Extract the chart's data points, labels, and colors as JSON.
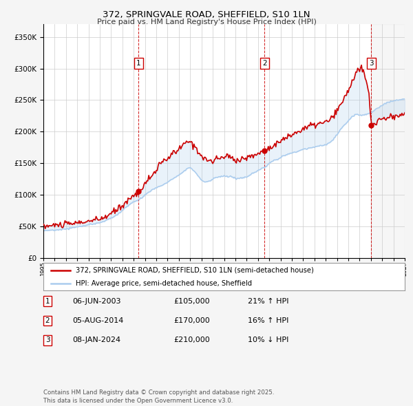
{
  "title": "372, SPRINGVALE ROAD, SHEFFIELD, S10 1LN",
  "subtitle": "Price paid vs. HM Land Registry's House Price Index (HPI)",
  "xlim": [
    1995.0,
    2027.0
  ],
  "ylim": [
    0,
    370000
  ],
  "yticks": [
    0,
    50000,
    100000,
    150000,
    200000,
    250000,
    300000,
    350000
  ],
  "ytick_labels": [
    "£0",
    "£50K",
    "£100K",
    "£150K",
    "£200K",
    "£250K",
    "£300K",
    "£350K"
  ],
  "property_color": "#cc0000",
  "hpi_color": "#aaccee",
  "vline_color": "#cc0000",
  "background_color": "#f5f5f5",
  "plot_bg_color": "#ffffff",
  "legend1": "372, SPRINGVALE ROAD, SHEFFIELD, S10 1LN (semi-detached house)",
  "legend2": "HPI: Average price, semi-detached house, Sheffield",
  "transactions": [
    {
      "num": 1,
      "date": "06-JUN-2003",
      "price": "£105,000",
      "hpi": "21% ↑ HPI",
      "year": 2003.44
    },
    {
      "num": 2,
      "date": "05-AUG-2014",
      "price": "£170,000",
      "hpi": "16% ↑ HPI",
      "year": 2014.59
    },
    {
      "num": 3,
      "date": "08-JAN-2024",
      "price": "£210,000",
      "hpi": "10% ↓ HPI",
      "year": 2024.03
    }
  ],
  "transaction_prices": [
    105000,
    170000,
    210000
  ],
  "footnote": "Contains HM Land Registry data © Crown copyright and database right 2025.\nThis data is licensed under the Open Government Licence v3.0."
}
